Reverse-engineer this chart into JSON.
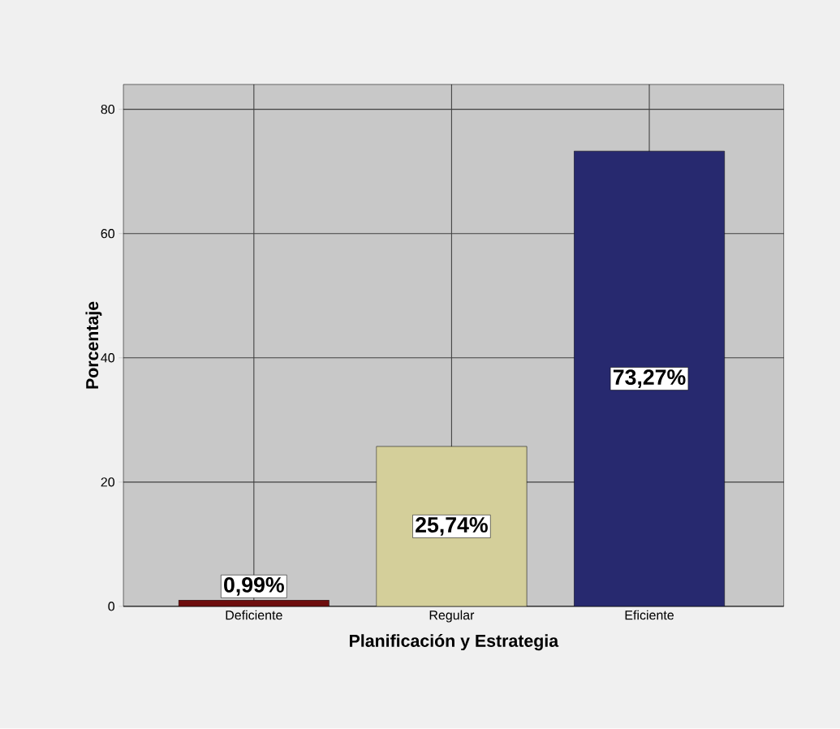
{
  "chart_data": {
    "type": "bar",
    "xlabel": "Planificación y Estrategia",
    "ylabel": "Porcentaje",
    "categories": [
      "Deficiente",
      "Regular",
      "Eficiente"
    ],
    "values": [
      0.99,
      25.74,
      73.27
    ],
    "colors": [
      "#6e0e0e",
      "#d4cf9a",
      "#27296f"
    ],
    "value_labels": [
      "0,99%",
      "25,74%",
      "73,27%"
    ],
    "ylim": [
      0,
      84
    ],
    "yticks": [
      0,
      20,
      40,
      60,
      80
    ],
    "grid": true
  }
}
